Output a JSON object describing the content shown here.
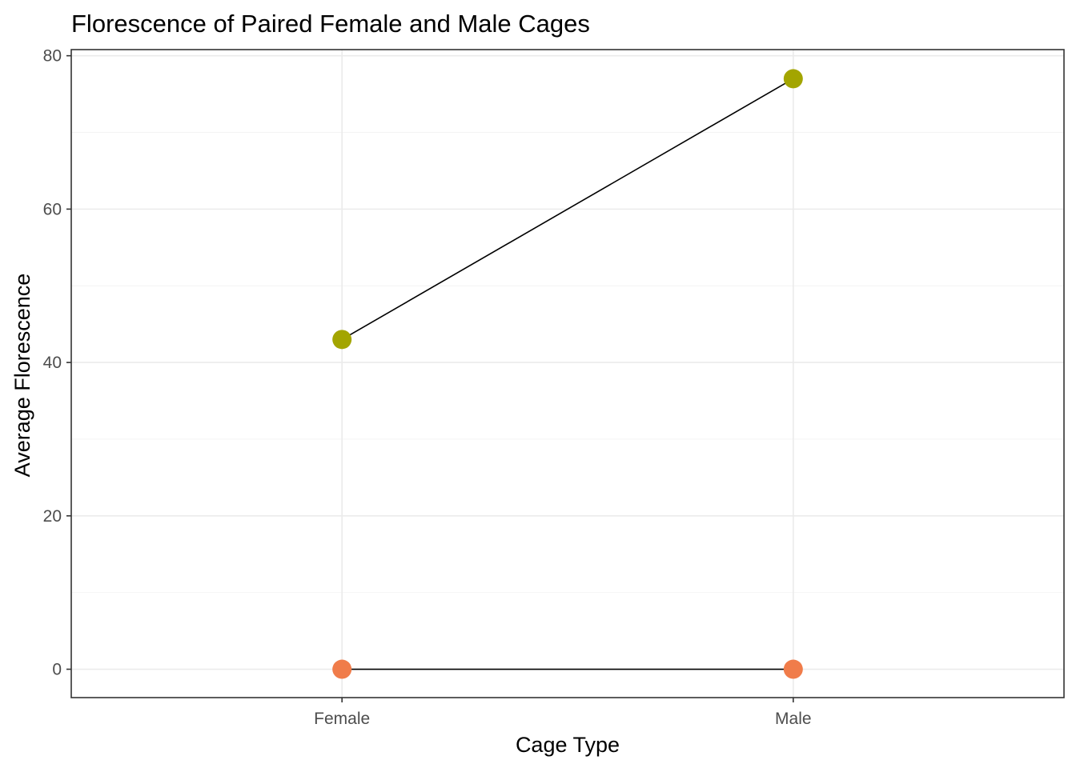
{
  "chart_data": {
    "type": "line",
    "title": "Florescence of Paired Female and Male Cages",
    "xlabel": "Cage Type",
    "ylabel": "Average Florescence",
    "categories": [
      "Female",
      "Male"
    ],
    "ylim": [
      -3.7,
      80.8
    ],
    "yticks": [
      0,
      20,
      40,
      60,
      80
    ],
    "yticks_labels": [
      "0",
      "20",
      "40",
      "60",
      "80"
    ],
    "grid": true,
    "legend": "none",
    "series": [
      {
        "values": [
          43,
          77
        ],
        "color": "#A3A500"
      },
      {
        "values": [
          0,
          0
        ],
        "color": "#F07C4A"
      }
    ]
  }
}
